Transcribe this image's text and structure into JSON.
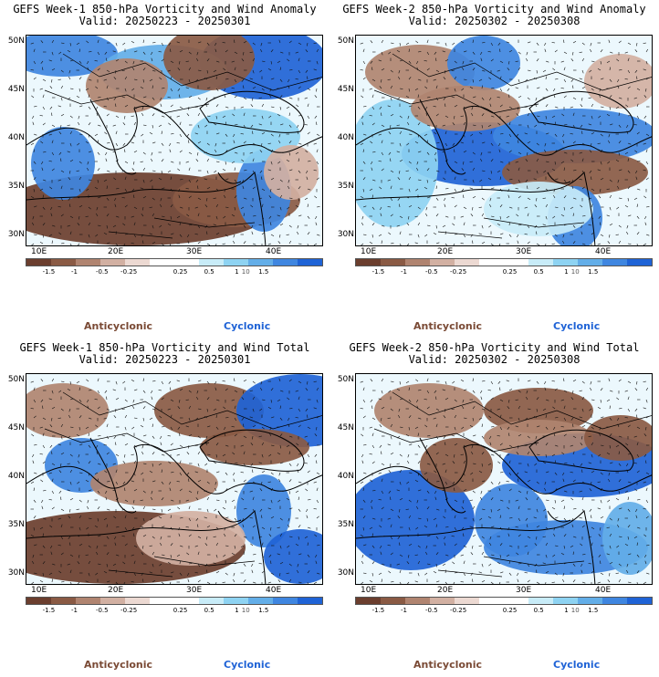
{
  "panels": [
    {
      "title": "GEFS Week-1 850-hPa Vorticity and Wind Anomaly",
      "valid": "Valid: 20250223 - 20250301",
      "pattern": "w1a"
    },
    {
      "title": "GEFS Week-2 850-hPa Vorticity and Wind Anomaly",
      "valid": "Valid: 20250302 - 20250308",
      "pattern": "w2a"
    },
    {
      "title": "GEFS Week-1 850-hPa Vorticity and Wind Total",
      "valid": "Valid: 20250223 - 20250301",
      "pattern": "w1t"
    },
    {
      "title": "GEFS Week-2 850-hPa Vorticity and Wind Total",
      "valid": "Valid: 20250302 - 20250308",
      "pattern": "w2t"
    }
  ],
  "axes": {
    "lat_labels": [
      "50N",
      "45N",
      "40N",
      "35N",
      "30N"
    ],
    "lon_labels": [
      "10E",
      "20E",
      "30E",
      "40E"
    ]
  },
  "colorbar": {
    "colors": [
      "#6b3e2e",
      "#8a5a44",
      "#b08470",
      "#d2b0a2",
      "#ecd9d2",
      "#ffffff",
      "#ffffff",
      "#c8ecf8",
      "#8ed3f2",
      "#63aee8",
      "#3f86e0",
      "#1f63d6"
    ],
    "labels": [
      "-1.5",
      "-1",
      "-0.5",
      "-0.25",
      "0.25",
      "0.5",
      "1",
      "1.5"
    ],
    "unit": "10"
  },
  "legend": {
    "anticyclonic": "Anticyclonic",
    "cyclonic": "Cyclonic"
  }
}
